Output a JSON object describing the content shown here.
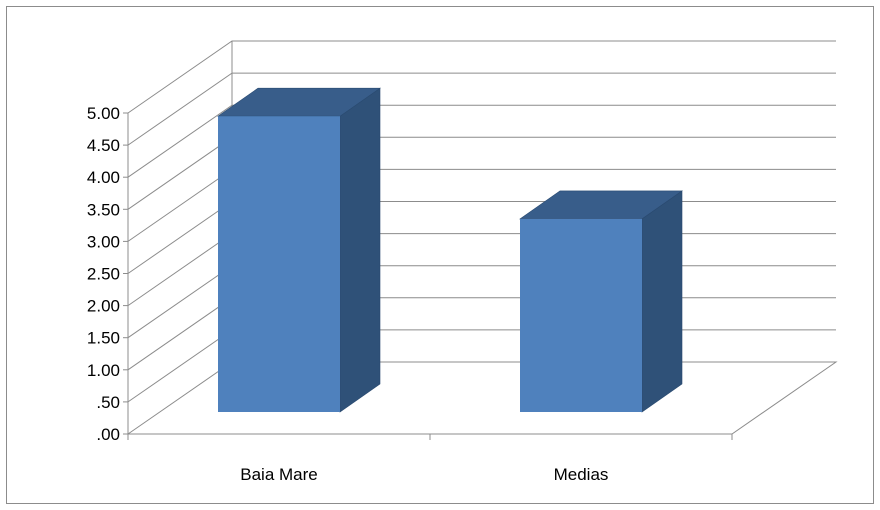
{
  "chart_data": {
    "type": "bar",
    "style": "3d-column",
    "categories": [
      "Baia Mare",
      "Medias"
    ],
    "values": [
      4.95,
      3.35
    ],
    "ylim": [
      0,
      5.0
    ],
    "ytick_labels": [
      ".00",
      ".50",
      "1.00",
      "1.50",
      "2.00",
      "2.50",
      "3.00",
      "3.50",
      "4.00",
      "4.50",
      "5.00"
    ],
    "grid": true,
    "colors": {
      "front": "#4f81bd",
      "side": "#2f5178",
      "top": "#385d8a",
      "grid": "#8c8c8c"
    }
  }
}
